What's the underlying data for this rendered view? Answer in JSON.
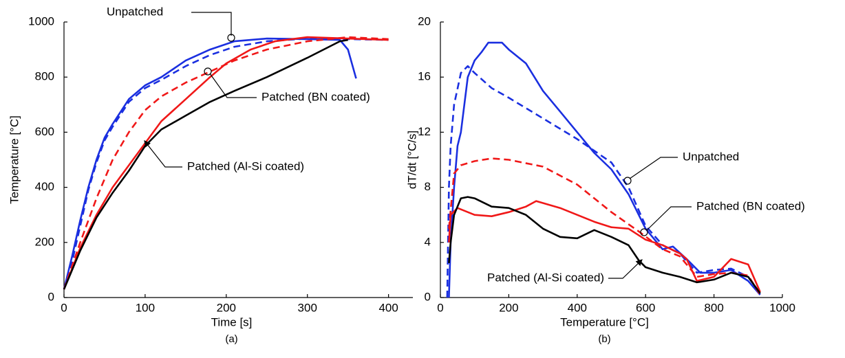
{
  "chart_data": [
    {
      "type": "line",
      "xlabel": "Time [s]",
      "ylabel": "Temperature [°C]",
      "caption": "(a)",
      "xlim": [
        0,
        430
      ],
      "ylim": [
        0,
        1000
      ],
      "xticks": [
        0,
        100,
        200,
        300,
        400
      ],
      "yticks": [
        0,
        200,
        400,
        600,
        800,
        1000
      ],
      "series": [
        {
          "color": "#1a2fe0",
          "dash": false,
          "x": [
            0,
            10,
            20,
            30,
            40,
            50,
            60,
            80,
            100,
            120,
            150,
            180,
            210,
            250,
            300,
            340,
            350,
            360
          ],
          "values": [
            30,
            150,
            280,
            400,
            500,
            580,
            630,
            720,
            770,
            800,
            860,
            900,
            930,
            940,
            938,
            935,
            900,
            795
          ]
        },
        {
          "color": "#1a2fe0",
          "dash": true,
          "x": [
            0,
            10,
            20,
            30,
            40,
            50,
            60,
            80,
            100,
            120,
            150,
            180,
            210,
            250,
            300,
            350,
            400
          ],
          "values": [
            30,
            130,
            260,
            390,
            490,
            570,
            620,
            710,
            760,
            790,
            840,
            880,
            910,
            930,
            940,
            938,
            935
          ]
        },
        {
          "color": "#f01818",
          "dash": false,
          "x": [
            0,
            20,
            40,
            60,
            80,
            100,
            120,
            150,
            180,
            200,
            230,
            260,
            300,
            350,
            400
          ],
          "values": [
            30,
            180,
            300,
            400,
            480,
            560,
            640,
            720,
            800,
            850,
            900,
            930,
            945,
            940,
            935
          ]
        },
        {
          "color": "#f01818",
          "dash": true,
          "x": [
            0,
            20,
            40,
            60,
            80,
            100,
            120,
            150,
            180,
            210,
            250,
            300,
            350,
            400
          ],
          "values": [
            30,
            200,
            360,
            500,
            600,
            680,
            730,
            780,
            820,
            860,
            900,
            930,
            945,
            938
          ]
        },
        {
          "color": "#000000",
          "dash": false,
          "x": [
            0,
            20,
            40,
            60,
            80,
            100,
            120,
            150,
            180,
            210,
            250,
            300,
            340,
            350
          ],
          "values": [
            30,
            170,
            290,
            380,
            460,
            550,
            610,
            660,
            710,
            750,
            800,
            870,
            930,
            935
          ]
        }
      ],
      "annotations": [
        "Unpatched",
        "Patched (BN coated)",
        "Patched (Al-Si coated)"
      ]
    },
    {
      "type": "line",
      "xlabel": "Temperature [°C]",
      "ylabel": "dT/dt [°C/s]",
      "caption": "(b)",
      "xlim": [
        0,
        1000
      ],
      "ylim": [
        0,
        20
      ],
      "xticks": [
        0,
        200,
        400,
        600,
        800,
        1000
      ],
      "yticks": [
        0,
        4,
        8,
        12,
        16,
        20
      ],
      "series": [
        {
          "color": "#1a2fe0",
          "dash": false,
          "x": [
            25,
            30,
            40,
            50,
            60,
            80,
            100,
            120,
            140,
            180,
            200,
            250,
            300,
            350,
            400,
            450,
            500,
            550,
            600,
            650,
            680,
            720,
            760,
            800,
            850,
            900,
            935
          ],
          "values": [
            0,
            4,
            8,
            11,
            12,
            16,
            17.2,
            17.8,
            18.5,
            18.5,
            18,
            17,
            15,
            13.5,
            12,
            10.5,
            9.3,
            7.5,
            5,
            3.5,
            3.7,
            2.8,
            1.8,
            1.8,
            2,
            1.2,
            0.2
          ]
        },
        {
          "color": "#1a2fe0",
          "dash": true,
          "x": [
            20,
            25,
            30,
            40,
            60,
            80,
            100,
            150,
            200,
            300,
            400,
            500,
            550,
            600,
            650,
            700,
            750,
            800,
            850,
            900,
            935
          ],
          "values": [
            0,
            8,
            11,
            14,
            16.3,
            16.8,
            16.3,
            15.2,
            14.5,
            13,
            11.5,
            9.8,
            8,
            5.2,
            3.8,
            3.2,
            1.8,
            2,
            2.1,
            1.5,
            0.3
          ]
        },
        {
          "color": "#f01818",
          "dash": false,
          "x": [
            25,
            30,
            50,
            100,
            150,
            200,
            250,
            280,
            350,
            400,
            450,
            500,
            550,
            600,
            650,
            700,
            720,
            750,
            800,
            850,
            900,
            935
          ],
          "values": [
            4,
            6,
            6.5,
            6,
            5.9,
            6.2,
            6.6,
            7,
            6.5,
            6,
            5.5,
            5.1,
            5,
            4.2,
            3.8,
            3.2,
            2.8,
            1.2,
            1.5,
            2.8,
            2.4,
            0.4
          ]
        },
        {
          "color": "#f01818",
          "dash": true,
          "x": [
            25,
            40,
            60,
            100,
            150,
            200,
            300,
            400,
            500,
            580,
            650,
            700,
            750,
            800,
            850,
            900,
            935
          ],
          "values": [
            5,
            9,
            9.6,
            9.9,
            10.1,
            10,
            9.5,
            8.2,
            6.2,
            4.8,
            3.5,
            3,
            1.5,
            1.7,
            1.8,
            1.6,
            0.2
          ]
        },
        {
          "color": "#000000",
          "dash": false,
          "x": [
            25,
            30,
            40,
            60,
            80,
            100,
            150,
            200,
            250,
            300,
            350,
            400,
            450,
            500,
            550,
            580,
            600,
            650,
            700,
            750,
            800,
            850,
            900,
            935
          ],
          "values": [
            2.5,
            4,
            6,
            7.2,
            7.3,
            7.2,
            6.6,
            6.5,
            6,
            5,
            4.4,
            4.3,
            4.9,
            4.4,
            3.8,
            2.7,
            2.2,
            1.8,
            1.5,
            1.1,
            1.3,
            1.8,
            1.5,
            0.3
          ]
        }
      ],
      "annotations": [
        "Unpatched",
        "Patched (BN coated)",
        "Patched (Al-Si coated)"
      ]
    }
  ]
}
